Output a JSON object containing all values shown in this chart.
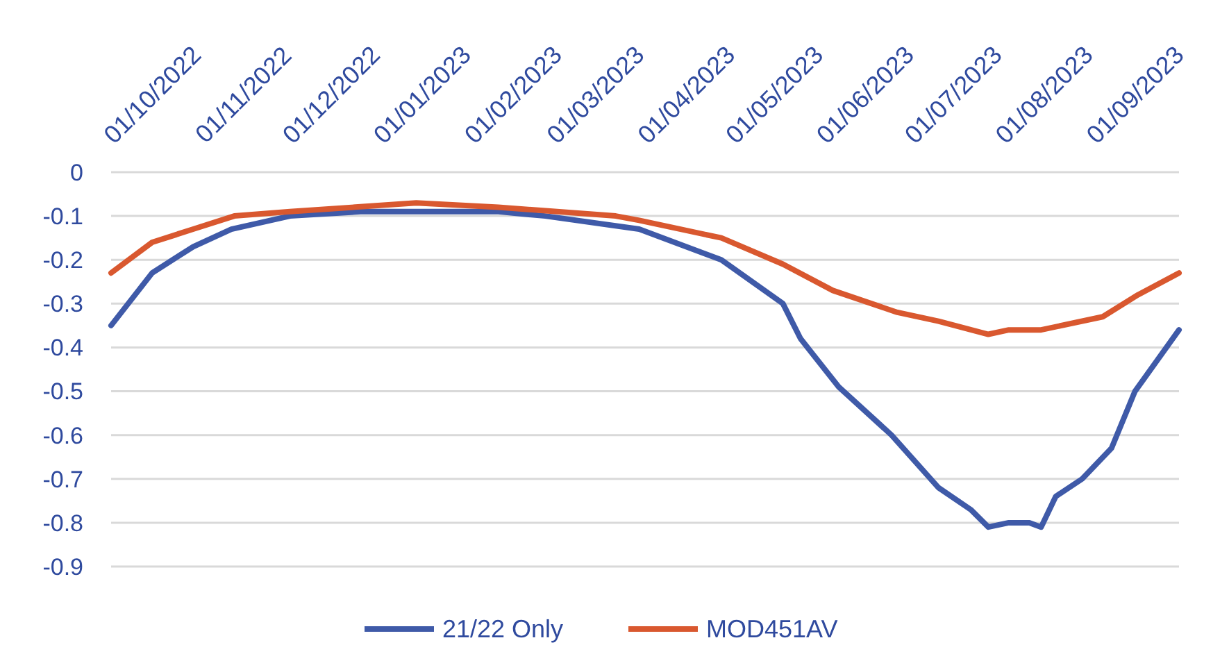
{
  "chart_data": {
    "type": "line",
    "xlim": [
      "2022-09-17",
      "2023-09-16"
    ],
    "xticks": [
      {
        "value": "2022-10-01",
        "label": "01/10/2022"
      },
      {
        "value": "2022-11-01",
        "label": "01/11/2022"
      },
      {
        "value": "2022-12-01",
        "label": "01/12/2022"
      },
      {
        "value": "2023-01-01",
        "label": "01/01/2023"
      },
      {
        "value": "2023-02-01",
        "label": "01/02/2023"
      },
      {
        "value": "2023-03-01",
        "label": "01/03/2023"
      },
      {
        "value": "2023-04-01",
        "label": "01/04/2023"
      },
      {
        "value": "2023-05-01",
        "label": "01/05/2023"
      },
      {
        "value": "2023-06-01",
        "label": "01/06/2023"
      },
      {
        "value": "2023-07-01",
        "label": "01/07/2023"
      },
      {
        "value": "2023-08-01",
        "label": "01/08/2023"
      },
      {
        "value": "2023-09-01",
        "label": "01/09/2023"
      }
    ],
    "ylim": [
      -0.9,
      0
    ],
    "yticks": [
      0,
      -0.1,
      -0.2,
      -0.3,
      -0.4,
      -0.5,
      -0.6,
      -0.7,
      -0.8,
      -0.9
    ],
    "grid": "y",
    "legend": "bottom",
    "marker": "none",
    "line_style": "solid",
    "series": [
      {
        "name": "21/22 Only",
        "color": "#3f5aa8",
        "x": [
          "2022-09-17",
          "2022-10-01",
          "2022-10-15",
          "2022-10-28",
          "2022-11-17",
          "2022-12-11",
          "2022-12-30",
          "2023-01-27",
          "2023-02-12",
          "2023-03-16",
          "2023-04-13",
          "2023-05-04",
          "2023-05-10",
          "2023-05-23",
          "2023-06-10",
          "2023-06-26",
          "2023-07-07",
          "2023-07-13",
          "2023-07-20",
          "2023-07-24",
          "2023-07-27",
          "2023-07-31",
          "2023-08-05",
          "2023-08-14",
          "2023-08-24",
          "2023-09-01",
          "2023-09-16"
        ],
        "values": [
          -0.35,
          -0.23,
          -0.17,
          -0.13,
          -0.1,
          -0.09,
          -0.09,
          -0.09,
          -0.1,
          -0.13,
          -0.2,
          -0.3,
          -0.38,
          -0.49,
          -0.6,
          -0.72,
          -0.77,
          -0.81,
          -0.8,
          -0.8,
          -0.8,
          -0.81,
          -0.74,
          -0.7,
          -0.63,
          -0.5,
          -0.36
        ]
      },
      {
        "name": "MOD451AV",
        "color": "#d9582f",
        "x": [
          "2022-09-17",
          "2022-10-01",
          "2022-10-15",
          "2022-10-29",
          "2022-11-17",
          "2022-12-30",
          "2023-01-27",
          "2023-03-08",
          "2023-03-16",
          "2023-04-13",
          "2023-05-04",
          "2023-05-21",
          "2023-06-12",
          "2023-06-26",
          "2023-07-13",
          "2023-07-20",
          "2023-07-31",
          "2023-08-21",
          "2023-09-02",
          "2023-09-16"
        ],
        "values": [
          -0.23,
          -0.16,
          -0.13,
          -0.1,
          -0.09,
          -0.07,
          -0.08,
          -0.1,
          -0.11,
          -0.15,
          -0.21,
          -0.27,
          -0.32,
          -0.34,
          -0.37,
          -0.36,
          -0.36,
          -0.33,
          -0.28,
          -0.23
        ]
      }
    ]
  }
}
